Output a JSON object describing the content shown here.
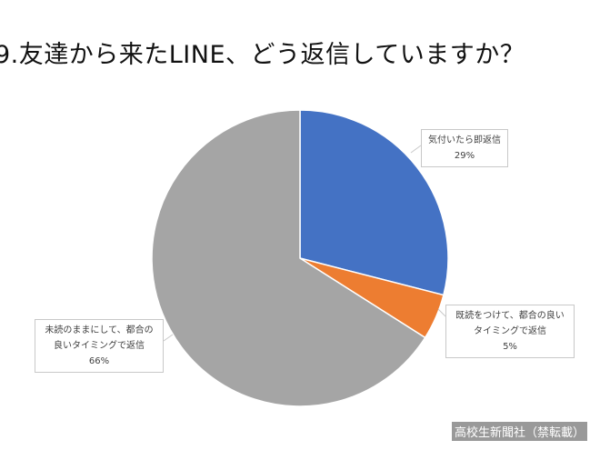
{
  "title": "9.友達から来たLINE、どう返信していますか？",
  "watermark": "高校生新聞社（禁転載）",
  "chart_data": {
    "type": "pie",
    "title": "9.友達から来たLINE、どう返信していますか？",
    "start_angle_deg": 0,
    "direction": "clockwise",
    "slices": [
      {
        "label": "気付いたら即返信",
        "label_lines": [
          "気付いたら即返信"
        ],
        "value": 29,
        "value_label": "29%",
        "color": "#4472C4"
      },
      {
        "label": "既読をつけて、都合の良いタイミングで返信",
        "label_lines": [
          "既読をつけて、都合の良い",
          "タイミングで返信"
        ],
        "value": 5,
        "value_label": "5%",
        "color": "#ED7D31"
      },
      {
        "label": "未読のままにして、都合の良いタイミングで返信",
        "label_lines": [
          "未読のままにして、都合の",
          "良いタイミングで返信"
        ],
        "value": 66,
        "value_label": "66%",
        "color": "#A5A5A5"
      }
    ],
    "legend": "none",
    "data_labels": "callout"
  }
}
